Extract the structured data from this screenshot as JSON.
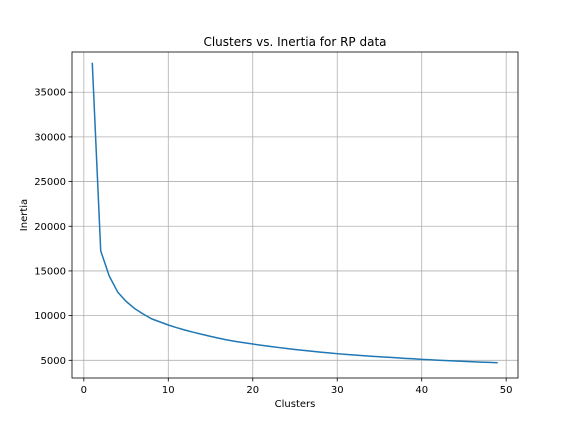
{
  "chart_data": {
    "type": "line",
    "title": "Clusters vs. Inertia for RP data",
    "xlabel": "Clusters",
    "ylabel": "Inertia",
    "xlim": [
      -1.4,
      51.4
    ],
    "ylim": [
      3020,
      39500
    ],
    "xticks": [
      0,
      10,
      20,
      30,
      40,
      50
    ],
    "yticks": [
      5000,
      10000,
      15000,
      20000,
      25000,
      30000,
      35000
    ],
    "grid": true,
    "series": [
      {
        "color": "#1f77b4",
        "x": [
          1,
          2,
          3,
          4,
          5,
          6,
          7,
          8,
          9,
          10,
          11,
          12,
          13,
          14,
          15,
          16,
          17,
          18,
          19,
          20,
          21,
          22,
          23,
          24,
          25,
          26,
          27,
          28,
          29,
          30,
          31,
          32,
          33,
          34,
          35,
          36,
          37,
          38,
          39,
          40,
          41,
          42,
          43,
          44,
          45,
          46,
          47,
          48,
          49
        ],
        "y": [
          38300,
          17250,
          14450,
          12650,
          11600,
          10800,
          10200,
          9650,
          9300,
          8950,
          8650,
          8380,
          8130,
          7900,
          7680,
          7470,
          7270,
          7110,
          6960,
          6820,
          6690,
          6560,
          6440,
          6320,
          6210,
          6110,
          6010,
          5920,
          5830,
          5740,
          5670,
          5600,
          5530,
          5460,
          5400,
          5340,
          5280,
          5220,
          5170,
          5110,
          5060,
          5010,
          4960,
          4920,
          4880,
          4840,
          4800,
          4770,
          4730
        ]
      }
    ]
  }
}
